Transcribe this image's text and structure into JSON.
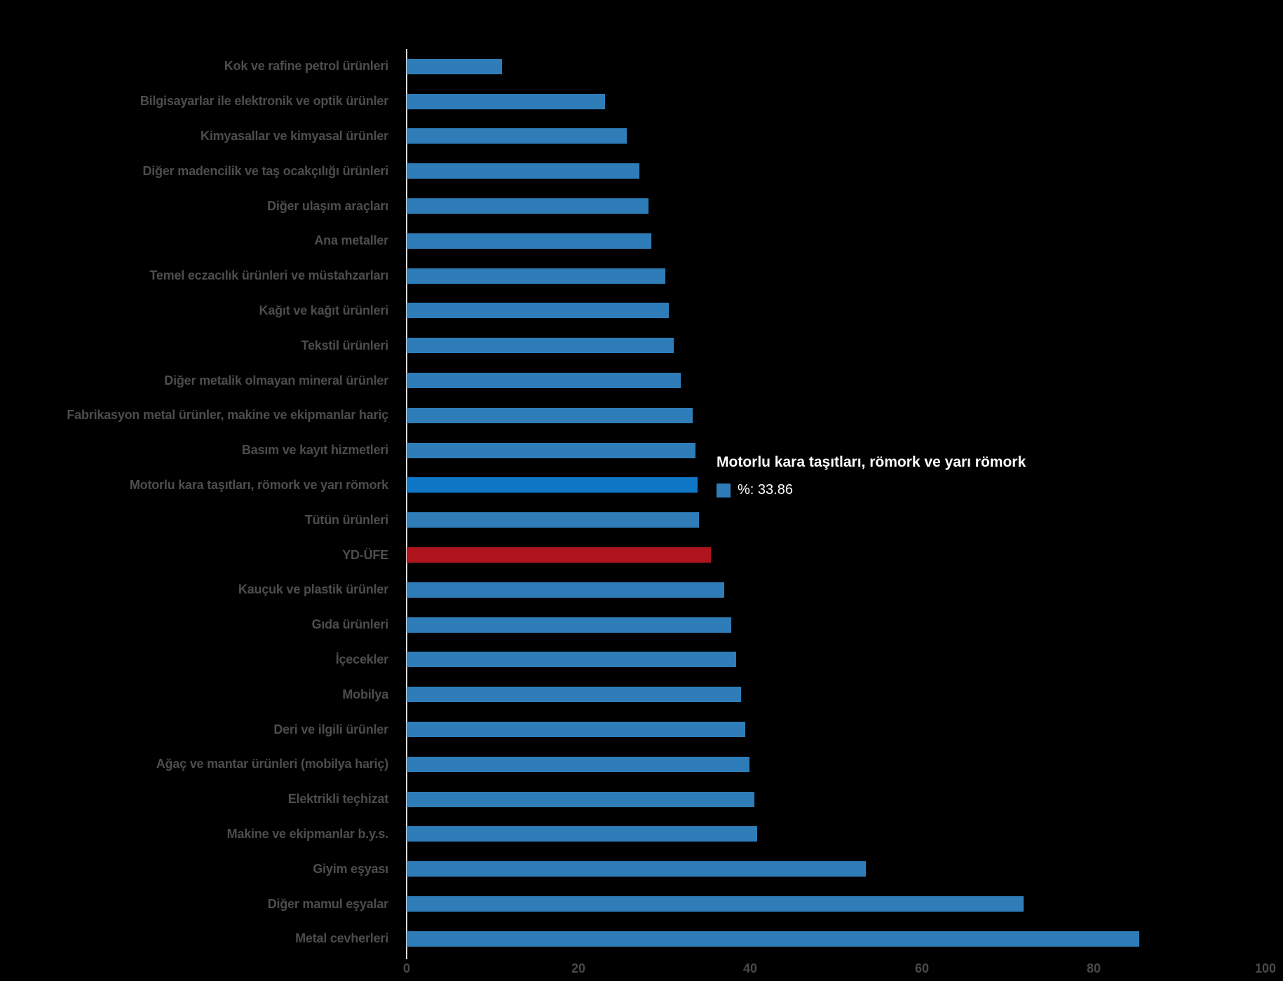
{
  "chart_data": {
    "type": "bar",
    "orientation": "horizontal",
    "title": "",
    "xlabel": "",
    "ylabel": "",
    "value_unit": "%",
    "xlim": [
      0,
      100
    ],
    "x_ticks": [
      0,
      20,
      40,
      60,
      80,
      100
    ],
    "grid": false,
    "categories": [
      "Kok ve rafine petrol ürünleri",
      "Bilgisayarlar ile elektronik ve optik ürünler",
      "Kimyasallar ve kimyasal ürünler",
      "Diğer madencilik ve taş ocakçılığı ürünleri",
      "Diğer ulaşım araçları",
      "Ana metaller",
      "Temel eczacılık ürünleri ve müstahzarları",
      "Kağıt ve kağıt ürünleri",
      "Tekstil ürünleri",
      "Diğer metalik olmayan mineral ürünler",
      "Fabrikasyon metal ürünler, makine ve ekipmanlar hariç",
      "Basım ve kayıt hizmetleri",
      "Motorlu kara taşıtları, römork ve yarı römork",
      "Tütün ürünleri",
      "YD-ÜFE",
      "Kauçuk ve plastik ürünler",
      "Gıda ürünleri",
      "İçecekler",
      "Mobilya",
      "Deri ve ilgili ürünler",
      "Ağaç ve mantar ürünleri (mobilya hariç)",
      "Elektrikli teçhizat",
      "Makine ve ekipmanlar b.y.s.",
      "Giyim eşyası",
      "Diğer mamul eşyalar",
      "Metal cevherleri"
    ],
    "values": [
      11.1,
      23.1,
      25.65,
      27.1,
      28.2,
      28.5,
      30.1,
      30.5,
      31.1,
      31.9,
      33.3,
      33.6,
      33.86,
      34.0,
      35.4,
      37.0,
      37.8,
      38.4,
      38.9,
      39.4,
      39.9,
      40.5,
      40.8,
      53.5,
      71.8,
      85.3
    ],
    "highlight": {
      "category": "Motorlu kara taşıtları, römork ve yarı römork",
      "index": 12,
      "value": 33.86
    },
    "special_series": {
      "category": "YD-ÜFE",
      "index": 14
    },
    "legend": []
  },
  "colors": {
    "background": "#000000",
    "bar_default": "#2f7db8",
    "bar_highlight": "#1076c6",
    "bar_special": "#ae141d",
    "label_text": "#4d4d4d",
    "tick_text": "#4a4a4a",
    "axis_line": "#dcdcdc",
    "tooltip_text": "#ffffff"
  },
  "tooltip": {
    "title": "Motorlu kara taşıtları, römork ve yarı römork",
    "value_label": "%: 33.86",
    "swatch": "series-color-swatch"
  }
}
